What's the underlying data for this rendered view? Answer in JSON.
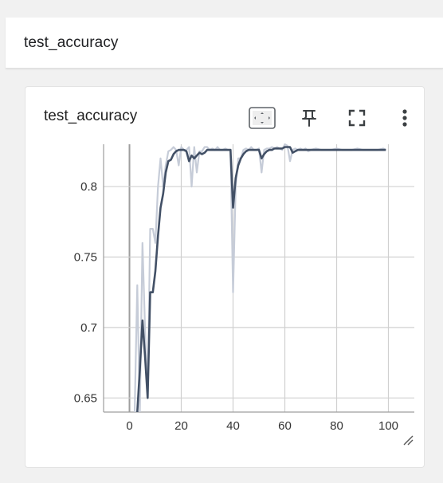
{
  "section": {
    "title": "test_accuracy"
  },
  "card": {
    "title": "test_accuracy",
    "toolbar": {
      "fit_domain_icon": "fit-to-data-icon",
      "pin_icon": "pin-icon",
      "fullscreen_icon": "fullscreen-icon",
      "more_icon": "more-vert-icon"
    }
  },
  "colors": {
    "smoothed_line": "#425066",
    "raw_line": "#c6ccd8",
    "grid": "#d0d0d0",
    "axis": "#9e9e9e"
  },
  "chart_data": {
    "type": "line",
    "title": "test_accuracy",
    "xlabel": "",
    "ylabel": "",
    "xlim": [
      -10,
      110
    ],
    "ylim": [
      0.64,
      0.83
    ],
    "x_ticks": [
      "0",
      "20",
      "40",
      "60",
      "80",
      "100"
    ],
    "y_ticks": [
      "0.65",
      "0.7",
      "0.75",
      "0.8"
    ],
    "grid": true,
    "series": [
      {
        "role": "raw",
        "x": [
          2,
          3,
          4,
          5,
          6,
          7,
          8,
          9,
          10,
          11,
          12,
          13,
          14,
          15,
          16,
          17,
          18,
          19,
          20,
          21,
          22,
          23,
          24,
          25,
          26,
          27,
          28,
          29,
          30,
          31,
          32,
          33,
          34,
          35,
          36,
          37,
          38,
          39,
          40,
          41,
          42,
          43,
          44,
          45,
          46,
          47,
          48,
          49,
          50,
          51,
          52,
          53,
          54,
          55,
          56,
          57,
          58,
          59,
          60,
          61,
          62,
          63,
          64,
          65,
          66,
          67,
          68,
          69,
          70,
          72,
          74,
          76,
          78,
          80,
          82,
          84,
          86,
          88,
          90,
          92,
          94,
          96,
          98,
          99
        ],
        "y": [
          0.64,
          0.73,
          0.64,
          0.76,
          0.7,
          0.65,
          0.77,
          0.77,
          0.76,
          0.8,
          0.82,
          0.8,
          0.815,
          0.825,
          0.826,
          0.828,
          0.826,
          0.815,
          0.828,
          0.826,
          0.826,
          0.828,
          0.8,
          0.828,
          0.81,
          0.825,
          0.825,
          0.828,
          0.828,
          0.826,
          0.827,
          0.826,
          0.828,
          0.826,
          0.826,
          0.827,
          0.826,
          0.826,
          0.725,
          0.8,
          0.82,
          0.82,
          0.826,
          0.827,
          0.826,
          0.828,
          0.826,
          0.826,
          0.827,
          0.81,
          0.826,
          0.827,
          0.827,
          0.828,
          0.827,
          0.828,
          0.827,
          0.826,
          0.83,
          0.829,
          0.818,
          0.826,
          0.827,
          0.826,
          0.827,
          0.826,
          0.827,
          0.825,
          0.826,
          0.827,
          0.826,
          0.826,
          0.826,
          0.827,
          0.826,
          0.826,
          0.826,
          0.827,
          0.826,
          0.826,
          0.826,
          0.826,
          0.827,
          0.826
        ]
      },
      {
        "role": "smoothed",
        "x": [
          3,
          4,
          5,
          6,
          7,
          8,
          9,
          10,
          11,
          12,
          13,
          14,
          15,
          16,
          17,
          18,
          19,
          20,
          21,
          22,
          23,
          24,
          25,
          26,
          27,
          28,
          29,
          30,
          31,
          32,
          33,
          34,
          35,
          36,
          37,
          38,
          39,
          40,
          41,
          42,
          43,
          44,
          45,
          46,
          47,
          48,
          49,
          50,
          51,
          52,
          53,
          54,
          55,
          56,
          57,
          58,
          59,
          60,
          61,
          62,
          63,
          64,
          65,
          66,
          67,
          68,
          69,
          70,
          72,
          74,
          76,
          78,
          80,
          82,
          84,
          86,
          88,
          90,
          92,
          94,
          96,
          98,
          99
        ],
        "y": [
          0.64,
          0.67,
          0.705,
          0.68,
          0.65,
          0.725,
          0.725,
          0.74,
          0.765,
          0.785,
          0.795,
          0.81,
          0.818,
          0.819,
          0.823,
          0.825,
          0.826,
          0.826,
          0.826,
          0.825,
          0.818,
          0.822,
          0.82,
          0.822,
          0.824,
          0.823,
          0.824,
          0.826,
          0.826,
          0.826,
          0.826,
          0.826,
          0.826,
          0.826,
          0.826,
          0.826,
          0.826,
          0.785,
          0.806,
          0.815,
          0.82,
          0.823,
          0.825,
          0.826,
          0.826,
          0.826,
          0.826,
          0.826,
          0.82,
          0.823,
          0.825,
          0.826,
          0.826,
          0.827,
          0.827,
          0.827,
          0.827,
          0.828,
          0.828,
          0.828,
          0.824,
          0.825,
          0.826,
          0.826,
          0.826,
          0.826,
          0.826,
          0.826,
          0.826,
          0.826,
          0.826,
          0.826,
          0.826,
          0.826,
          0.826,
          0.826,
          0.826,
          0.826,
          0.826,
          0.826,
          0.826,
          0.826,
          0.826
        ]
      }
    ]
  }
}
